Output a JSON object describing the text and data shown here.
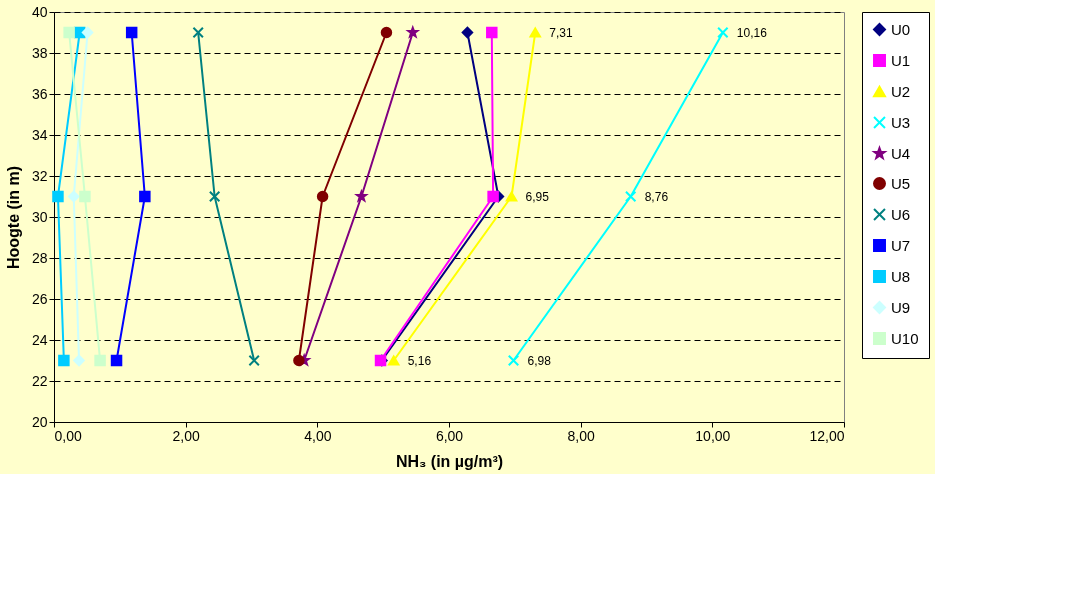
{
  "chart_data": {
    "type": "line",
    "xlabel": "NH₃ (in µg/m³)",
    "ylabel": "Hoogte (in m)",
    "xlim": [
      0,
      12
    ],
    "xticks": [
      {
        "value": 0,
        "label": "0,00"
      },
      {
        "value": 2,
        "label": "2,00"
      },
      {
        "value": 4,
        "label": "4,00"
      },
      {
        "value": 6,
        "label": "6,00"
      },
      {
        "value": 8,
        "label": "8,00"
      },
      {
        "value": 10,
        "label": "10,00"
      },
      {
        "value": 12,
        "label": "12,00"
      }
    ],
    "ylim": [
      20,
      40
    ],
    "yticks": [
      20,
      22,
      24,
      26,
      28,
      30,
      32,
      34,
      36,
      38,
      40
    ],
    "grid": "y",
    "legend": "right",
    "line_style": "solid",
    "annotations": [
      {
        "text": "5,16",
        "x": 5.16,
        "y": 23
      },
      {
        "text": "6,95",
        "x": 6.95,
        "y": 31
      },
      {
        "text": "7,31",
        "x": 7.31,
        "y": 39
      },
      {
        "text": "6,98",
        "x": 6.98,
        "y": 23
      },
      {
        "text": "8,76",
        "x": 8.76,
        "y": 31
      },
      {
        "text": "10,16",
        "x": 10.16,
        "y": 39
      }
    ],
    "series": [
      {
        "name": "U0",
        "color": "#000080",
        "marker": "diamond",
        "x": [
          4.98,
          6.75,
          6.28
        ],
        "values": [
          23,
          31,
          39
        ]
      },
      {
        "name": "U1",
        "color": "#ff00ff",
        "marker": "square",
        "x": [
          4.96,
          6.67,
          6.65
        ],
        "values": [
          23,
          31,
          39
        ]
      },
      {
        "name": "U2",
        "color": "#ffff00",
        "marker": "triangle",
        "x": [
          5.16,
          6.95,
          7.31
        ],
        "values": [
          23,
          31,
          39
        ]
      },
      {
        "name": "U3",
        "color": "#00ffff",
        "marker": "cross",
        "x": [
          6.98,
          8.76,
          10.16
        ],
        "values": [
          23,
          31,
          39
        ]
      },
      {
        "name": "U4",
        "color": "#800080",
        "marker": "star",
        "x": [
          3.8,
          4.67,
          5.45
        ],
        "values": [
          23,
          31,
          39
        ]
      },
      {
        "name": "U5",
        "color": "#800000",
        "marker": "circle",
        "x": [
          3.72,
          4.08,
          5.05
        ],
        "values": [
          23,
          31,
          39
        ]
      },
      {
        "name": "U6",
        "color": "#008080",
        "marker": "cross",
        "x": [
          3.04,
          2.44,
          2.19
        ],
        "values": [
          23,
          31,
          39
        ]
      },
      {
        "name": "U7",
        "color": "#0000ff",
        "marker": "square",
        "x": [
          0.95,
          1.38,
          1.18
        ],
        "values": [
          23,
          31,
          39
        ]
      },
      {
        "name": "U8",
        "color": "#00ccff",
        "marker": "square",
        "x": [
          0.15,
          0.06,
          0.39
        ],
        "values": [
          23,
          31,
          39
        ]
      },
      {
        "name": "U9",
        "color": "#ccffff",
        "marker": "diamond",
        "x": [
          0.38,
          0.3,
          0.51
        ],
        "values": [
          23,
          31,
          39
        ]
      },
      {
        "name": "U10",
        "color": "#ccffcc",
        "marker": "square",
        "x": [
          0.7,
          0.47,
          0.23
        ],
        "values": [
          23,
          31,
          39
        ]
      }
    ]
  }
}
